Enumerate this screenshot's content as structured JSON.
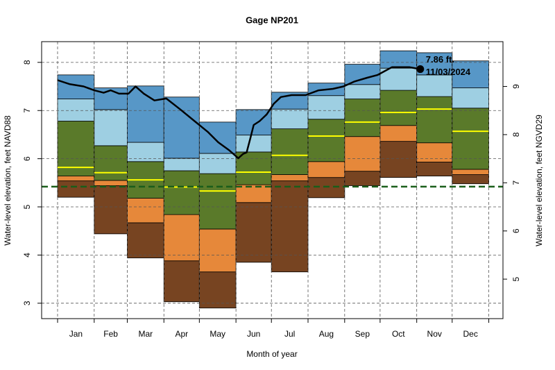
{
  "chart_data": {
    "type": "percentile-bands",
    "title": "Gage NP201",
    "xlabel": "Month of year",
    "ylabel": "Water-level elevation, feet NAVD88",
    "y2label": "Water-level elevation, feet NGVD29",
    "categories": [
      "Jan",
      "Feb",
      "Mar",
      "Apr",
      "May",
      "Jun",
      "Jul",
      "Aug",
      "Sep",
      "Oct",
      "Nov",
      "Dec"
    ],
    "xlim": [
      -12.5,
      378
    ],
    "xticks": [
      1,
      32,
      60,
      91,
      121,
      152,
      182,
      213,
      244,
      274,
      305,
      335,
      366
    ],
    "ylim": [
      2.68,
      8.43
    ],
    "yticks": [
      3,
      4,
      5,
      6,
      7,
      8
    ],
    "y2lim": [
      4.18,
      9.93
    ],
    "y2ticks": [
      5,
      6,
      7,
      8,
      9
    ],
    "grid": true,
    "band_colors": [
      "#774421",
      "#e6883a",
      "#5a7a2a",
      "#9ecfe2",
      "#5797c7"
    ],
    "levels": [
      [
        5.2,
        4.44,
        3.94,
        3.03,
        2.9,
        3.85,
        3.65,
        5.19,
        5.44,
        5.61,
        5.64,
        5.48
      ],
      [
        5.54,
        5.44,
        4.67,
        3.88,
        3.65,
        5.09,
        5.54,
        5.61,
        5.74,
        6.36,
        5.93,
        5.67
      ],
      [
        5.64,
        5.55,
        5.18,
        4.84,
        4.54,
        5.46,
        5.67,
        5.94,
        6.46,
        6.69,
        6.33,
        5.78
      ],
      [
        6.78,
        6.27,
        5.94,
        5.75,
        5.69,
        6.14,
        6.62,
        6.82,
        7.24,
        7.42,
        7.29,
        7.05
      ],
      [
        7.24,
        7.02,
        6.34,
        6.01,
        6.11,
        6.49,
        7.03,
        7.31,
        7.54,
        7.88,
        7.74,
        7.47
      ],
      [
        7.74,
        7.47,
        7.51,
        7.28,
        6.76,
        7.02,
        7.38,
        7.57,
        7.96,
        8.24,
        8.2,
        8.03
      ]
    ],
    "median_color": "#ffff00",
    "medians": [
      5.82,
      5.71,
      5.56,
      5.41,
      5.33,
      5.72,
      6.07,
      6.47,
      6.76,
      6.96,
      7.03,
      6.57
    ],
    "reference_line": 5.42,
    "reference_color": "#1a5e1a",
    "series": [
      {
        "color": "#000000",
        "x": [
          1,
          11,
          23,
          32,
          40,
          46,
          53,
          61,
          67,
          74,
          83,
          93,
          105,
          117,
          123,
          128,
          137,
          146,
          154,
          158,
          161,
          164,
          167,
          172,
          178,
          184,
          190,
          199,
          211,
          222,
          234,
          243,
          252,
          263,
          272,
          284,
          299,
          308
        ],
        "values": [
          7.63,
          7.55,
          7.5,
          7.42,
          7.37,
          7.42,
          7.35,
          7.35,
          7.5,
          7.35,
          7.21,
          7.25,
          7.02,
          6.78,
          6.66,
          6.56,
          6.34,
          6.18,
          6.01,
          6.1,
          6.13,
          6.41,
          6.7,
          6.78,
          6.92,
          7.14,
          7.28,
          7.32,
          7.32,
          7.42,
          7.45,
          7.5,
          7.6,
          7.68,
          7.74,
          7.9,
          7.9,
          7.86
        ]
      }
    ],
    "current": {
      "x": 308,
      "value": 7.86,
      "label": "7.86 ft.",
      "date": "11/03/2024"
    }
  }
}
